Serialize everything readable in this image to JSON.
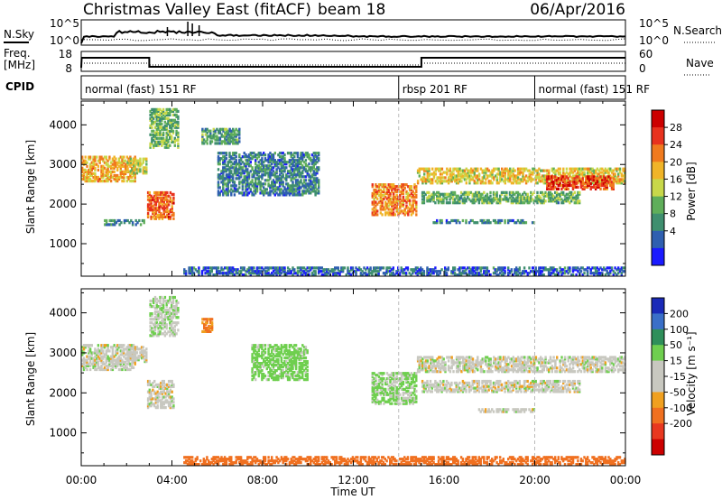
{
  "header": {
    "title": "Christmas Valley East (fitACF)",
    "beam": "beam 18",
    "date": "06/Apr/2016"
  },
  "top_panels": {
    "nsky_label": "N.Sky",
    "nsearch_label": "N.Search",
    "nsky_ticks": [
      "10^5",
      "10^0"
    ],
    "nsearch_ticks": [
      "10^5",
      "10^0"
    ],
    "freq_label_1": "Freq.",
    "freq_label_2": "[MHz]",
    "freq_ticks": [
      "18",
      "8"
    ],
    "nave_label": "Nave",
    "nave_ticks": [
      "60",
      "0"
    ],
    "cpid_label": "CPID",
    "programs": [
      {
        "name": "normal (fast) 151 RF",
        "start_hour": 0,
        "end_hour": 14
      },
      {
        "name": "rbsp 201 RF",
        "start_hour": 14,
        "end_hour": 20
      },
      {
        "name": "normal (fast) 151 RF",
        "start_hour": 20,
        "end_hour": 24
      }
    ]
  },
  "colors": {
    "power_scale": [
      "#1a1aff",
      "#2f5fb0",
      "#3f8f6f",
      "#5fae5a",
      "#c8d84a",
      "#f0b428",
      "#f07a1e",
      "#e8321e",
      "#cc0000"
    ],
    "velocity_scale": [
      "#1a2ab8",
      "#3a6fc8",
      "#2f8f5a",
      "#6fcf4f",
      "#c8c8c0",
      "#c8c8c0",
      "#f0a020",
      "#f07020",
      "#e83820",
      "#cc0000"
    ]
  },
  "chart_data": [
    {
      "type": "heatmap",
      "name": "Power panel",
      "ylabel": "Slant Range [km]",
      "colorbar_label": "Power [dB]",
      "colorbar_ticks": [
        "28",
        "24",
        "20",
        "16",
        "12",
        "8",
        "4"
      ],
      "colorbar_range": [
        0,
        32
      ],
      "yticks": [
        "4000",
        "3000",
        "2000",
        "1000"
      ],
      "ylim": [
        180,
        4600
      ],
      "xlim": [
        0,
        24
      ],
      "regions": [
        {
          "t0": 0.0,
          "t1": 2.4,
          "r0": 2550,
          "r1": 3200,
          "p": 20
        },
        {
          "t0": 2.0,
          "t1": 2.9,
          "r0": 2750,
          "r1": 3150,
          "p": 16
        },
        {
          "t0": 2.9,
          "t1": 4.1,
          "r0": 1600,
          "r1": 2300,
          "p": 24
        },
        {
          "t0": 1.0,
          "t1": 2.8,
          "r0": 1450,
          "r1": 1600,
          "p": 8
        },
        {
          "t0": 3.0,
          "t1": 4.3,
          "r0": 3400,
          "r1": 4400,
          "p": 12
        },
        {
          "t0": 5.3,
          "t1": 7.0,
          "r0": 3500,
          "r1": 3900,
          "p": 10
        },
        {
          "t0": 6.0,
          "t1": 10.5,
          "r0": 2200,
          "r1": 3300,
          "p": 8
        },
        {
          "t0": 12.8,
          "t1": 14.8,
          "r0": 1700,
          "r1": 2500,
          "p": 22
        },
        {
          "t0": 14.8,
          "t1": 24.0,
          "r0": 2500,
          "r1": 2900,
          "p": 18
        },
        {
          "t0": 20.5,
          "t1": 23.5,
          "r0": 2350,
          "r1": 2700,
          "p": 26
        },
        {
          "t0": 15.0,
          "t1": 22.0,
          "r0": 2000,
          "r1": 2300,
          "p": 12
        },
        {
          "t0": 15.5,
          "t1": 20.0,
          "r0": 1500,
          "r1": 1600,
          "p": 8
        },
        {
          "t0": 4.5,
          "t1": 24.0,
          "r0": 180,
          "r1": 400,
          "p": 6
        }
      ]
    },
    {
      "type": "heatmap",
      "name": "Velocity panel",
      "ylabel": "Slant Range [km]",
      "xlabel": "Time UT",
      "colorbar_label": "Velocity [m s⁻¹]",
      "colorbar_ticks": [
        "200",
        "100",
        "50",
        "15",
        "-15",
        "-50",
        "-100",
        "-200"
      ],
      "colorbar_range": [
        -250,
        250
      ],
      "yticks": [
        "4000",
        "3000",
        "2000",
        "1000"
      ],
      "xticks": [
        "00:00",
        "04:00",
        "08:00",
        "12:00",
        "16:00",
        "20:00",
        "00:00"
      ],
      "ylim": [
        180,
        4600
      ],
      "xlim": [
        0,
        24
      ],
      "regions": [
        {
          "t0": 0.0,
          "t1": 2.4,
          "r0": 2550,
          "r1": 3200,
          "v": 0
        },
        {
          "t0": 2.0,
          "t1": 2.9,
          "r0": 2750,
          "r1": 3150,
          "v": 0
        },
        {
          "t0": 2.9,
          "t1": 4.1,
          "r0": 1600,
          "r1": 2300,
          "v": 0
        },
        {
          "t0": 3.0,
          "t1": 4.3,
          "r0": 3400,
          "r1": 4400,
          "v": 10
        },
        {
          "t0": 5.3,
          "t1": 5.8,
          "r0": 3500,
          "r1": 3850,
          "v": -60
        },
        {
          "t0": 7.5,
          "t1": 10.0,
          "r0": 2300,
          "r1": 3200,
          "v": 30
        },
        {
          "t0": 12.8,
          "t1": 14.8,
          "r0": 1700,
          "r1": 2500,
          "v": 20
        },
        {
          "t0": 14.8,
          "t1": 24.0,
          "r0": 2500,
          "r1": 2900,
          "v": 0
        },
        {
          "t0": 15.0,
          "t1": 22.0,
          "r0": 2000,
          "r1": 2300,
          "v": 0
        },
        {
          "t0": 17.5,
          "t1": 20.0,
          "r0": 1500,
          "r1": 1600,
          "v": 0
        },
        {
          "t0": 4.5,
          "t1": 24.0,
          "r0": 180,
          "r1": 400,
          "v": -70
        }
      ]
    }
  ]
}
